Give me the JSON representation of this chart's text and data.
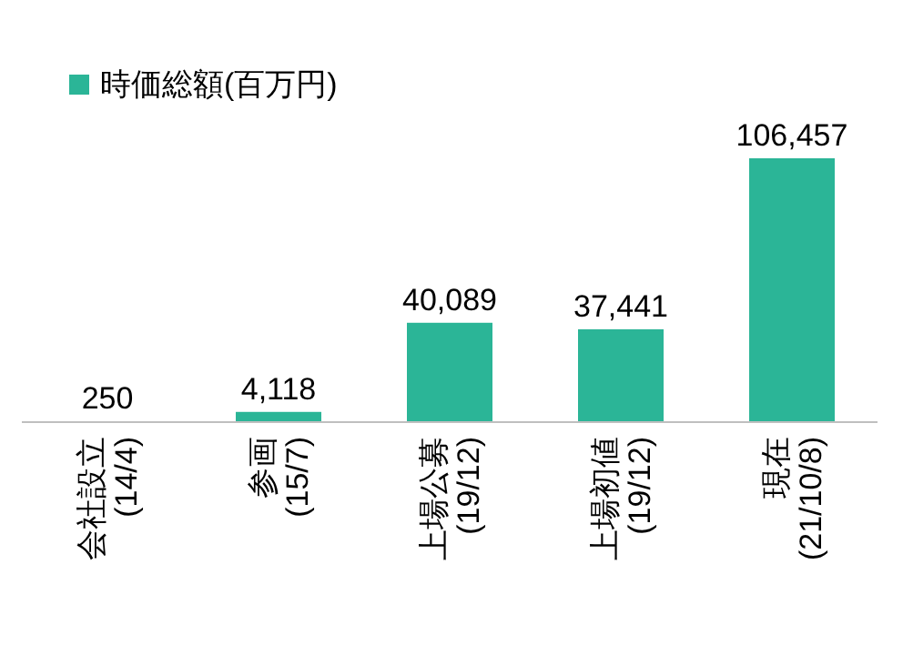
{
  "chart_data": {
    "type": "bar",
    "categories": [
      "会社設立\n(14/4)",
      "参画\n(15/7)",
      "上場公募\n(19/12)",
      "上場初値\n(19/12)",
      "現在\n(21/10/8)"
    ],
    "series": [
      {
        "name": "時価総額(百万円)",
        "color": "#2bb597",
        "values": [
          250,
          4118,
          40089,
          37441,
          106457
        ],
        "value_labels": [
          "250",
          "4,118",
          "40,089",
          "37,441",
          "106,457"
        ]
      }
    ],
    "legend": "top left"
  }
}
